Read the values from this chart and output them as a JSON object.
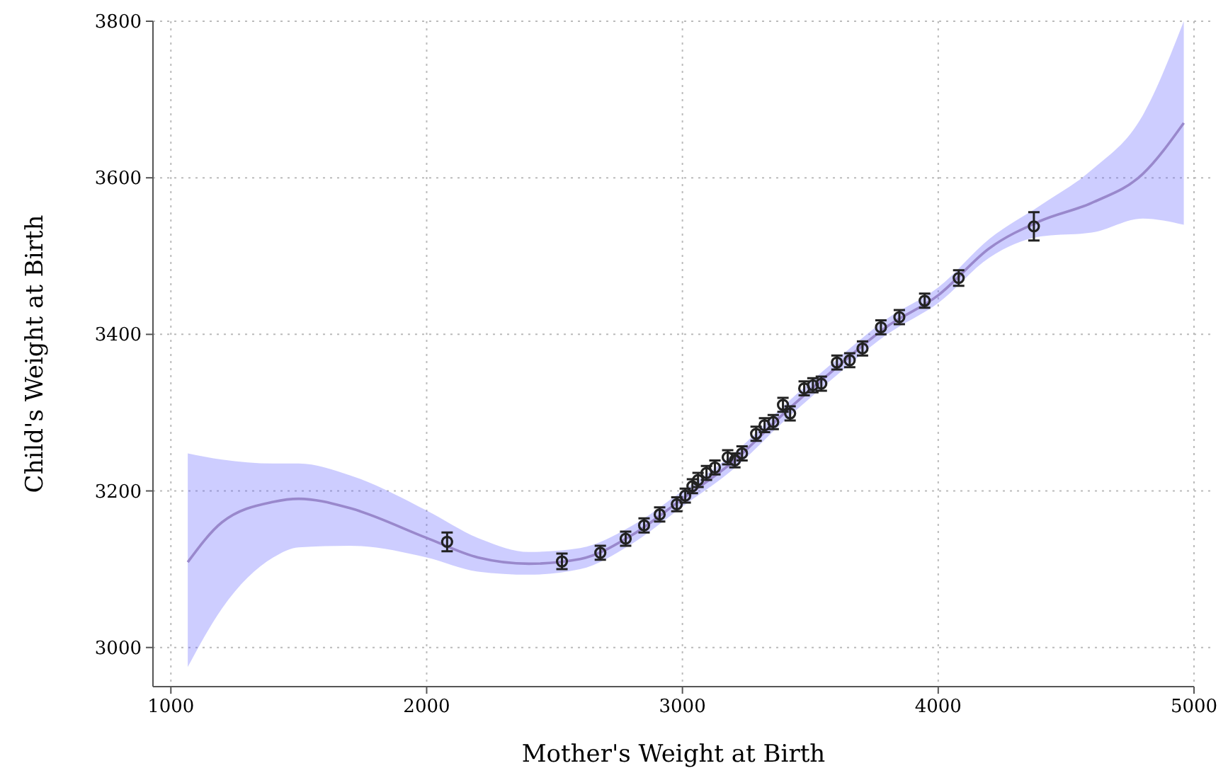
{
  "chart_data": {
    "type": "line",
    "xlabel": "Mother's Weight at Birth",
    "ylabel": "Child's Weight at Birth",
    "xlim": [
      930,
      5000
    ],
    "ylim": [
      2950,
      3800
    ],
    "xticks": [
      1000,
      2000,
      3000,
      4000,
      5000
    ],
    "yticks": [
      3000,
      3200,
      3400,
      3600,
      3800
    ],
    "grid": true,
    "series": [
      {
        "color": "#9988cc",
        "line_style": "solid",
        "marker": "none",
        "x": [
          1066,
          1200,
          1400,
          1500,
          1700,
          2000,
          2200,
          2400,
          2600,
          2800,
          3000,
          3200,
          3400,
          3600,
          3800,
          4000,
          4200,
          4400,
          4600,
          4800,
          4960
        ],
        "values": [
          3109,
          3160,
          3186,
          3190,
          3178,
          3140,
          3115,
          3107,
          3113,
          3143,
          3190,
          3238,
          3300,
          3357,
          3410,
          3450,
          3510,
          3545,
          3568,
          3605,
          3670
        ],
        "lower": [
          2975,
          3050,
          3115,
          3128,
          3130,
          3115,
          3097,
          3093,
          3100,
          3132,
          3180,
          3228,
          3290,
          3347,
          3400,
          3440,
          3498,
          3525,
          3530,
          3548,
          3540
        ],
        "upper": [
          3248,
          3240,
          3235,
          3235,
          3220,
          3175,
          3140,
          3122,
          3127,
          3155,
          3200,
          3248,
          3310,
          3367,
          3420,
          3460,
          3522,
          3565,
          3610,
          3680,
          3800
        ]
      },
      {
        "type": "scatter",
        "color": "#222222",
        "marker": "circle",
        "x": [
          2080,
          2529,
          2679,
          2778,
          2850,
          2911,
          2978,
          3011,
          3039,
          3061,
          3094,
          3127,
          3177,
          3205,
          3233,
          3288,
          3321,
          3355,
          3393,
          3421,
          3476,
          3510,
          3543,
          3604,
          3654,
          3704,
          3776,
          3848,
          3947,
          4080,
          4374
        ],
        "values": [
          3135,
          3110,
          3121,
          3139,
          3156,
          3170,
          3183,
          3194,
          3206,
          3214,
          3223,
          3230,
          3243,
          3239,
          3248,
          3273,
          3284,
          3288,
          3310,
          3299,
          3331,
          3335,
          3337,
          3364,
          3367,
          3382,
          3409,
          3422,
          3443,
          3472,
          3538
        ],
        "errors": [
          12,
          10,
          9,
          9,
          9,
          9,
          9,
          9,
          9,
          9,
          9,
          9,
          9,
          9,
          9,
          9,
          9,
          9,
          9,
          9,
          9,
          9,
          9,
          9,
          9,
          9,
          9,
          9,
          9,
          10,
          18
        ]
      }
    ]
  }
}
